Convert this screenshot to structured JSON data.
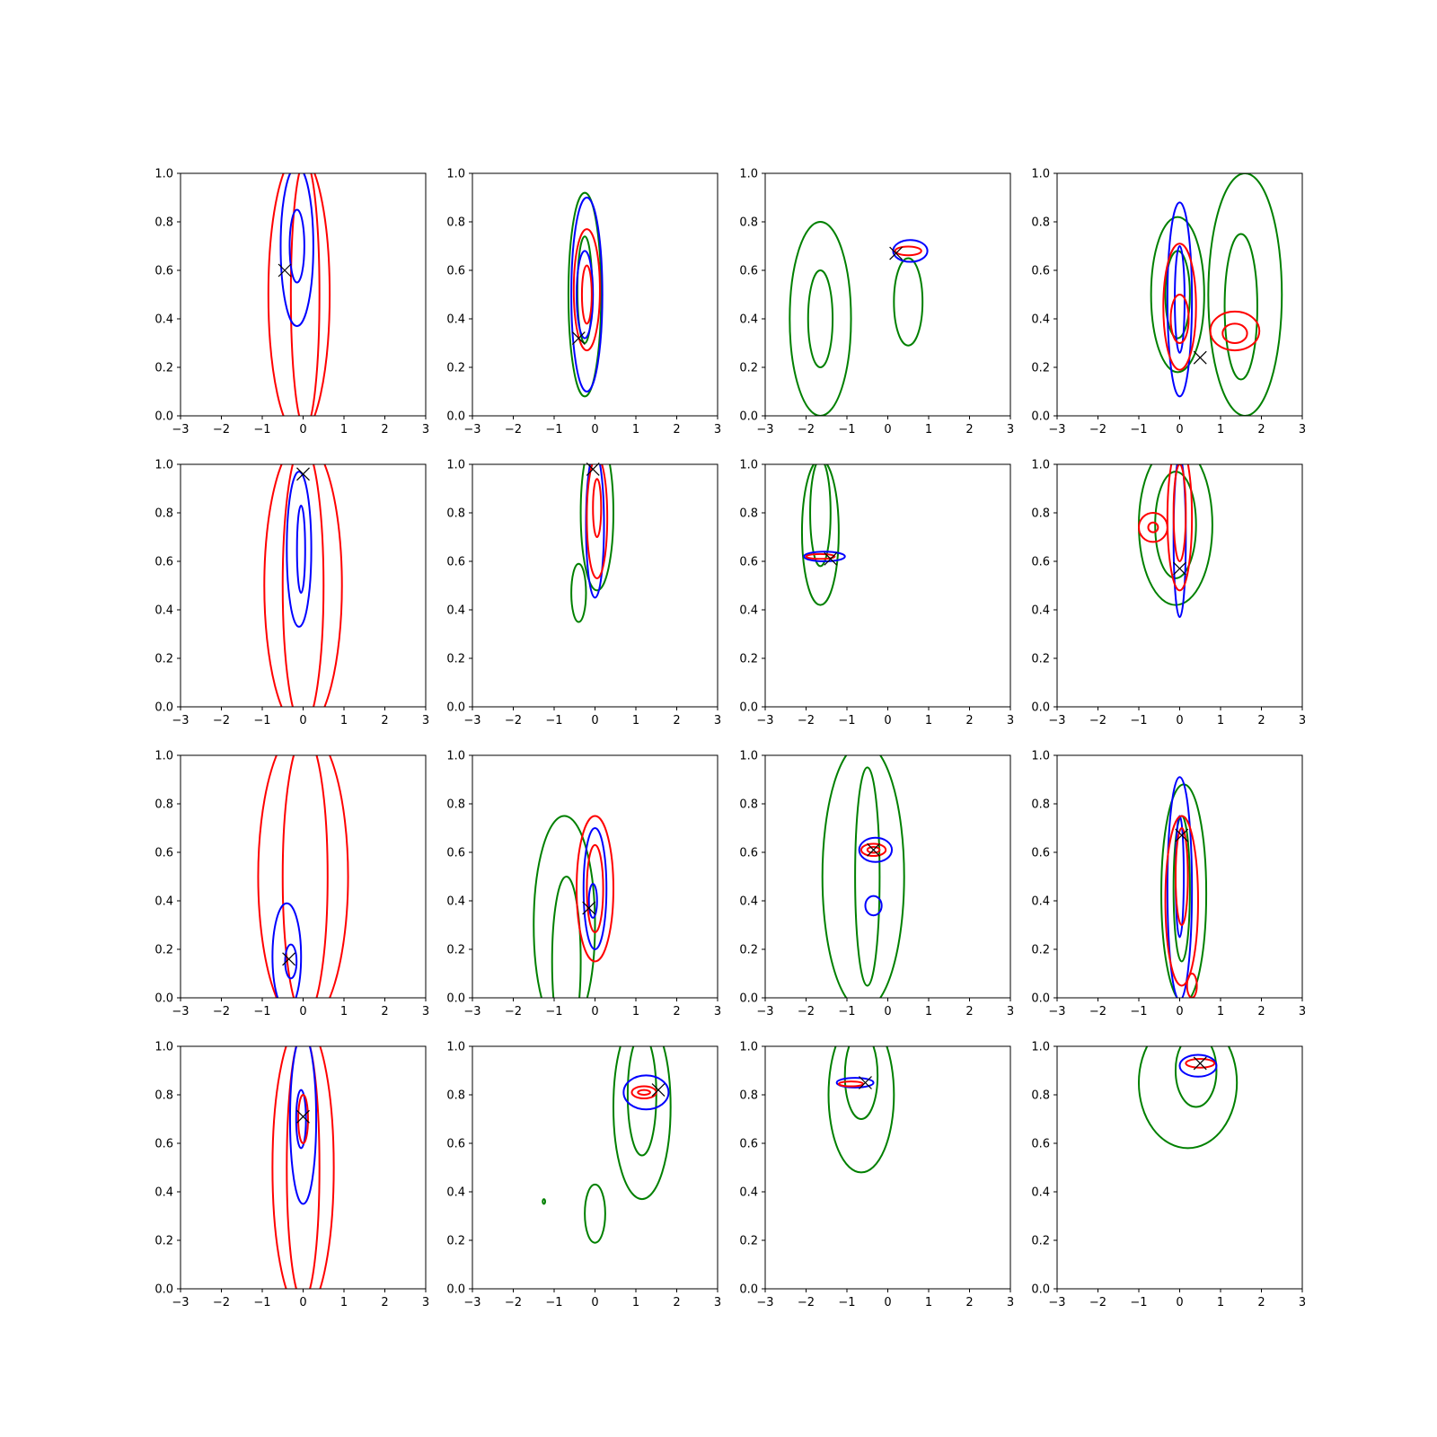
{
  "figure": {
    "rows": 4,
    "cols": 4,
    "colors": {
      "blue": "#0000ff",
      "red": "#ff0000",
      "green": "#008000",
      "marker": "#000000"
    },
    "x_ticks": [
      -3,
      -2,
      -1,
      0,
      1,
      2,
      3
    ],
    "x_tick_labels": [
      "−3",
      "−2",
      "−1",
      "0",
      "1",
      "2",
      "3"
    ],
    "y_ticks": [
      0.0,
      0.2,
      0.4,
      0.6,
      0.8,
      1.0
    ],
    "y_tick_labels": [
      "0.0",
      "0.2",
      "0.4",
      "0.6",
      "0.8",
      "1.0"
    ]
  },
  "chart_data": [
    {
      "type": "contour",
      "xlim": [
        -3,
        3
      ],
      "ylim": [
        0,
        1
      ],
      "marker": [
        -0.45,
        0.6
      ],
      "contours": [
        {
          "color": "red",
          "cx": -0.1,
          "cy": 0.5,
          "rx": 0.75,
          "ry": 0.58
        },
        {
          "color": "red",
          "cx": 0.05,
          "cy": 0.5,
          "rx": 0.35,
          "ry": 0.55
        },
        {
          "color": "blue",
          "cx": -0.15,
          "cy": 0.7,
          "rx": 0.4,
          "ry": 0.33
        },
        {
          "color": "blue",
          "cx": -0.15,
          "cy": 0.7,
          "rx": 0.18,
          "ry": 0.15
        }
      ]
    },
    {
      "type": "contour",
      "xlim": [
        -3,
        3
      ],
      "ylim": [
        0,
        1
      ],
      "marker": [
        -0.4,
        0.32
      ],
      "contours": [
        {
          "color": "green",
          "cx": -0.25,
          "cy": 0.5,
          "rx": 0.4,
          "ry": 0.42
        },
        {
          "color": "green",
          "cx": -0.25,
          "cy": 0.52,
          "rx": 0.18,
          "ry": 0.22
        },
        {
          "color": "blue",
          "cx": -0.2,
          "cy": 0.5,
          "rx": 0.38,
          "ry": 0.4
        },
        {
          "color": "blue",
          "cx": -0.25,
          "cy": 0.5,
          "rx": 0.2,
          "ry": 0.18
        },
        {
          "color": "red",
          "cx": -0.2,
          "cy": 0.52,
          "rx": 0.32,
          "ry": 0.25
        },
        {
          "color": "red",
          "cx": -0.2,
          "cy": 0.5,
          "rx": 0.12,
          "ry": 0.12
        }
      ]
    },
    {
      "type": "contour",
      "xlim": [
        -3,
        3
      ],
      "ylim": [
        0,
        1
      ],
      "marker": [
        0.2,
        0.67
      ],
      "contours": [
        {
          "color": "green",
          "cx": -1.65,
          "cy": 0.4,
          "rx": 0.75,
          "ry": 0.4
        },
        {
          "color": "green",
          "cx": -1.65,
          "cy": 0.4,
          "rx": 0.3,
          "ry": 0.2
        },
        {
          "color": "green",
          "cx": 0.5,
          "cy": 0.47,
          "rx": 0.35,
          "ry": 0.18
        },
        {
          "color": "blue",
          "cx": 0.55,
          "cy": 0.68,
          "rx": 0.42,
          "ry": 0.045
        },
        {
          "color": "red",
          "cx": 0.5,
          "cy": 0.68,
          "rx": 0.32,
          "ry": 0.018
        }
      ]
    },
    {
      "type": "contour",
      "xlim": [
        -3,
        3
      ],
      "ylim": [
        0,
        1
      ],
      "marker": [
        0.5,
        0.24
      ],
      "contours": [
        {
          "color": "green",
          "cx": 1.6,
          "cy": 0.5,
          "rx": 0.9,
          "ry": 0.5
        },
        {
          "color": "green",
          "cx": 1.5,
          "cy": 0.45,
          "rx": 0.4,
          "ry": 0.3
        },
        {
          "color": "green",
          "cx": -0.05,
          "cy": 0.5,
          "rx": 0.65,
          "ry": 0.32
        },
        {
          "color": "green",
          "cx": -0.05,
          "cy": 0.5,
          "rx": 0.3,
          "ry": 0.18
        },
        {
          "color": "blue",
          "cx": 0,
          "cy": 0.48,
          "rx": 0.3,
          "ry": 0.4
        },
        {
          "color": "blue",
          "cx": 0,
          "cy": 0.48,
          "rx": 0.12,
          "ry": 0.22
        },
        {
          "color": "red",
          "cx": 0,
          "cy": 0.45,
          "rx": 0.4,
          "ry": 0.26
        },
        {
          "color": "red",
          "cx": 0,
          "cy": 0.4,
          "rx": 0.22,
          "ry": 0.1
        },
        {
          "color": "red",
          "cx": 1.35,
          "cy": 0.35,
          "rx": 0.6,
          "ry": 0.08
        },
        {
          "color": "red",
          "cx": 1.35,
          "cy": 0.34,
          "rx": 0.3,
          "ry": 0.04
        }
      ]
    },
    {
      "type": "contour",
      "xlim": [
        -3,
        3
      ],
      "ylim": [
        0,
        1
      ],
      "marker": [
        0,
        0.96
      ],
      "contours": [
        {
          "color": "red",
          "cx": 0,
          "cy": 0.5,
          "rx": 0.95,
          "ry": 0.6
        },
        {
          "color": "red",
          "cx": 0,
          "cy": 0.5,
          "rx": 0.5,
          "ry": 0.58
        },
        {
          "color": "blue",
          "cx": -0.1,
          "cy": 0.65,
          "rx": 0.3,
          "ry": 0.32
        },
        {
          "color": "blue",
          "cx": -0.05,
          "cy": 0.65,
          "rx": 0.1,
          "ry": 0.18
        }
      ]
    },
    {
      "type": "contour",
      "xlim": [
        -3,
        3
      ],
      "ylim": [
        0,
        1
      ],
      "marker": [
        -0.05,
        0.98
      ],
      "contours": [
        {
          "color": "green",
          "cx": 0.05,
          "cy": 0.8,
          "rx": 0.4,
          "ry": 0.32
        },
        {
          "color": "green",
          "cx": -0.4,
          "cy": 0.47,
          "rx": 0.18,
          "ry": 0.12
        },
        {
          "color": "blue",
          "cx": 0,
          "cy": 0.75,
          "rx": 0.22,
          "ry": 0.3
        },
        {
          "color": "red",
          "cx": 0.05,
          "cy": 0.78,
          "rx": 0.25,
          "ry": 0.25
        },
        {
          "color": "red",
          "cx": 0.05,
          "cy": 0.82,
          "rx": 0.1,
          "ry": 0.12
        }
      ]
    },
    {
      "type": "contour",
      "xlim": [
        -3,
        3
      ],
      "ylim": [
        0,
        1
      ],
      "marker": [
        -1.4,
        0.61
      ],
      "contours": [
        {
          "color": "green",
          "cx": -1.65,
          "cy": 0.72,
          "rx": 0.45,
          "ry": 0.3
        },
        {
          "color": "green",
          "cx": -1.65,
          "cy": 0.8,
          "rx": 0.25,
          "ry": 0.22
        },
        {
          "color": "blue",
          "cx": -1.55,
          "cy": 0.62,
          "rx": 0.5,
          "ry": 0.02
        },
        {
          "color": "red",
          "cx": -1.65,
          "cy": 0.62,
          "rx": 0.35,
          "ry": 0.01
        }
      ]
    },
    {
      "type": "contour",
      "xlim": [
        -3,
        3
      ],
      "ylim": [
        0,
        1
      ],
      "marker": [
        0,
        0.57
      ],
      "contours": [
        {
          "color": "green",
          "cx": -0.1,
          "cy": 0.75,
          "rx": 0.9,
          "ry": 0.33
        },
        {
          "color": "green",
          "cx": -0.1,
          "cy": 0.75,
          "rx": 0.5,
          "ry": 0.22
        },
        {
          "color": "blue",
          "cx": 0,
          "cy": 0.7,
          "rx": 0.15,
          "ry": 0.33
        },
        {
          "color": "red",
          "cx": 0,
          "cy": 0.78,
          "rx": 0.3,
          "ry": 0.3
        },
        {
          "color": "red",
          "cx": 0,
          "cy": 0.8,
          "rx": 0.15,
          "ry": 0.2
        },
        {
          "color": "red",
          "cx": -0.65,
          "cy": 0.74,
          "rx": 0.35,
          "ry": 0.06
        },
        {
          "color": "red",
          "cx": -0.65,
          "cy": 0.74,
          "rx": 0.12,
          "ry": 0.02
        }
      ]
    },
    {
      "type": "contour",
      "xlim": [
        -3,
        3
      ],
      "ylim": [
        0,
        1
      ],
      "marker": [
        -0.35,
        0.16
      ],
      "contours": [
        {
          "color": "red",
          "cx": 0,
          "cy": 0.5,
          "rx": 1.1,
          "ry": 0.62
        },
        {
          "color": "red",
          "cx": 0.05,
          "cy": 0.5,
          "rx": 0.55,
          "ry": 0.58
        },
        {
          "color": "blue",
          "cx": -0.4,
          "cy": 0.17,
          "rx": 0.35,
          "ry": 0.22
        },
        {
          "color": "blue",
          "cx": -0.3,
          "cy": 0.15,
          "rx": 0.14,
          "ry": 0.07
        }
      ]
    },
    {
      "type": "contour",
      "xlim": [
        -3,
        3
      ],
      "ylim": [
        0,
        1
      ],
      "marker": [
        -0.15,
        0.37
      ],
      "contours": [
        {
          "color": "green",
          "cx": -0.75,
          "cy": 0.3,
          "rx": 0.75,
          "ry": 0.45
        },
        {
          "color": "green",
          "cx": -0.7,
          "cy": 0.15,
          "rx": 0.35,
          "ry": 0.35
        },
        {
          "color": "blue",
          "cx": 0,
          "cy": 0.45,
          "rx": 0.28,
          "ry": 0.25
        },
        {
          "color": "blue",
          "cx": -0.05,
          "cy": 0.4,
          "rx": 0.1,
          "ry": 0.07
        },
        {
          "color": "red",
          "cx": 0,
          "cy": 0.45,
          "rx": 0.45,
          "ry": 0.3
        },
        {
          "color": "red",
          "cx": 0,
          "cy": 0.45,
          "rx": 0.2,
          "ry": 0.18
        }
      ]
    },
    {
      "type": "contour",
      "xlim": [
        -3,
        3
      ],
      "ylim": [
        0,
        1
      ],
      "marker": [
        -0.35,
        0.61
      ],
      "contours": [
        {
          "color": "green",
          "cx": -0.6,
          "cy": 0.5,
          "rx": 1.0,
          "ry": 0.55
        },
        {
          "color": "green",
          "cx": -0.5,
          "cy": 0.5,
          "rx": 0.3,
          "ry": 0.45
        },
        {
          "color": "blue",
          "cx": -0.3,
          "cy": 0.61,
          "rx": 0.4,
          "ry": 0.05
        },
        {
          "color": "blue",
          "cx": -0.35,
          "cy": 0.38,
          "rx": 0.2,
          "ry": 0.04
        },
        {
          "color": "red",
          "cx": -0.35,
          "cy": 0.61,
          "rx": 0.3,
          "ry": 0.025
        },
        {
          "color": "red",
          "cx": -0.35,
          "cy": 0.61,
          "rx": 0.15,
          "ry": 0.012
        }
      ]
    },
    {
      "type": "contour",
      "xlim": [
        -3,
        3
      ],
      "ylim": [
        0,
        1
      ],
      "marker": [
        0.05,
        0.67
      ],
      "contours": [
        {
          "color": "green",
          "cx": 0.1,
          "cy": 0.43,
          "rx": 0.55,
          "ry": 0.45
        },
        {
          "color": "green",
          "cx": 0.05,
          "cy": 0.45,
          "rx": 0.2,
          "ry": 0.3
        },
        {
          "color": "blue",
          "cx": 0,
          "cy": 0.45,
          "rx": 0.3,
          "ry": 0.46
        },
        {
          "color": "blue",
          "cx": 0,
          "cy": 0.5,
          "rx": 0.1,
          "ry": 0.25
        },
        {
          "color": "red",
          "cx": 0.05,
          "cy": 0.4,
          "rx": 0.4,
          "ry": 0.35
        },
        {
          "color": "red",
          "cx": 0.05,
          "cy": 0.5,
          "rx": 0.15,
          "ry": 0.2
        },
        {
          "color": "red",
          "cx": 0.3,
          "cy": 0.05,
          "rx": 0.12,
          "ry": 0.05
        }
      ]
    },
    {
      "type": "contour",
      "xlim": [
        -3,
        3
      ],
      "ylim": [
        0,
        1
      ],
      "marker": [
        0,
        0.71
      ],
      "contours": [
        {
          "color": "red",
          "cx": 0,
          "cy": 0.5,
          "rx": 0.75,
          "ry": 0.6
        },
        {
          "color": "red",
          "cx": 0,
          "cy": 0.5,
          "rx": 0.4,
          "ry": 0.55
        },
        {
          "color": "blue",
          "cx": 0,
          "cy": 0.7,
          "rx": 0.32,
          "ry": 0.35
        },
        {
          "color": "blue",
          "cx": -0.05,
          "cy": 0.7,
          "rx": 0.12,
          "ry": 0.12
        },
        {
          "color": "red",
          "cx": 0,
          "cy": 0.7,
          "rx": 0.12,
          "ry": 0.1
        }
      ]
    },
    {
      "type": "contour",
      "xlim": [
        -3,
        3
      ],
      "ylim": [
        0,
        1
      ],
      "marker": [
        1.55,
        0.82
      ],
      "contours": [
        {
          "color": "green",
          "cx": 1.15,
          "cy": 0.75,
          "rx": 0.7,
          "ry": 0.38
        },
        {
          "color": "green",
          "cx": 1.15,
          "cy": 0.8,
          "rx": 0.35,
          "ry": 0.25
        },
        {
          "color": "green",
          "cx": 0,
          "cy": 0.31,
          "rx": 0.25,
          "ry": 0.12
        },
        {
          "color": "green",
          "cx": -1.25,
          "cy": 0.36,
          "rx": 0.03,
          "ry": 0.01
        },
        {
          "color": "blue",
          "cx": 1.25,
          "cy": 0.81,
          "rx": 0.55,
          "ry": 0.07
        },
        {
          "color": "red",
          "cx": 1.2,
          "cy": 0.81,
          "rx": 0.3,
          "ry": 0.025
        },
        {
          "color": "red",
          "cx": 1.2,
          "cy": 0.81,
          "rx": 0.15,
          "ry": 0.01
        }
      ]
    },
    {
      "type": "contour",
      "xlim": [
        -3,
        3
      ],
      "ylim": [
        0,
        1
      ],
      "marker": [
        -0.55,
        0.85
      ],
      "contours": [
        {
          "color": "green",
          "cx": -0.65,
          "cy": 0.8,
          "rx": 0.8,
          "ry": 0.32
        },
        {
          "color": "green",
          "cx": -0.65,
          "cy": 0.88,
          "rx": 0.4,
          "ry": 0.18
        },
        {
          "color": "blue",
          "cx": -0.8,
          "cy": 0.85,
          "rx": 0.45,
          "ry": 0.02
        },
        {
          "color": "red",
          "cx": -0.9,
          "cy": 0.845,
          "rx": 0.3,
          "ry": 0.01
        }
      ]
    },
    {
      "type": "contour",
      "xlim": [
        -3,
        3
      ],
      "ylim": [
        0,
        1
      ],
      "marker": [
        0.5,
        0.93
      ],
      "contours": [
        {
          "color": "green",
          "cx": 0.2,
          "cy": 0.85,
          "rx": 1.2,
          "ry": 0.27
        },
        {
          "color": "green",
          "cx": 0.4,
          "cy": 0.9,
          "rx": 0.5,
          "ry": 0.15
        },
        {
          "color": "blue",
          "cx": 0.45,
          "cy": 0.92,
          "rx": 0.45,
          "ry": 0.045
        },
        {
          "color": "red",
          "cx": 0.5,
          "cy": 0.93,
          "rx": 0.35,
          "ry": 0.018
        }
      ]
    }
  ]
}
